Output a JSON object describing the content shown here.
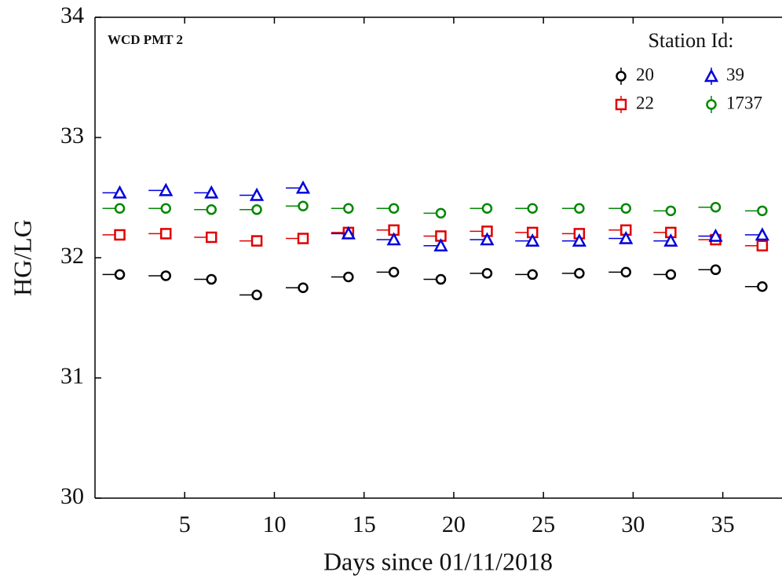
{
  "chart_data": {
    "type": "scatter",
    "annotation": "WCD PMT 2",
    "x_label": "Days since 01/11/2018",
    "y_label": "HG/LG",
    "legend_title": "Station Id:",
    "legend_position": "upper right",
    "grid": false,
    "xlim": [
      0,
      38.3
    ],
    "xticks": [
      5,
      10,
      15,
      20,
      25,
      30,
      35
    ],
    "ylim": [
      30,
      34
    ],
    "yticks": [
      30,
      31,
      32,
      33,
      34
    ],
    "x": [
      1.38,
      3.95,
      6.49,
      9.02,
      11.6,
      14.13,
      16.66,
      19.28,
      21.86,
      24.39,
      27.0,
      29.6,
      32.1,
      34.6,
      37.2
    ],
    "series": [
      {
        "name": "20",
        "color": "#000000",
        "marker": "circle",
        "values": [
          31.86,
          31.85,
          31.82,
          31.69,
          31.75,
          31.84,
          31.88,
          31.82,
          31.87,
          31.86,
          31.87,
          31.88,
          31.86,
          31.9,
          31.76
        ]
      },
      {
        "name": "22",
        "color": "#e00000",
        "marker": "square",
        "values": [
          32.19,
          32.2,
          32.17,
          32.14,
          32.16,
          32.21,
          32.23,
          32.18,
          32.22,
          32.21,
          32.2,
          32.23,
          32.21,
          32.15,
          32.1
        ]
      },
      {
        "name": "39",
        "color": "#0000dd",
        "marker": "triangle",
        "values": [
          32.54,
          32.56,
          32.54,
          32.52,
          32.58,
          32.2,
          32.15,
          32.1,
          32.15,
          32.14,
          32.14,
          32.16,
          32.14,
          32.18,
          32.19
        ]
      },
      {
        "name": "1737",
        "color": "#008800",
        "marker": "circle",
        "values": [
          32.41,
          32.41,
          32.4,
          32.4,
          32.43,
          32.41,
          32.41,
          32.37,
          32.41,
          32.41,
          32.41,
          32.41,
          32.39,
          32.42,
          32.39
        ]
      }
    ]
  }
}
